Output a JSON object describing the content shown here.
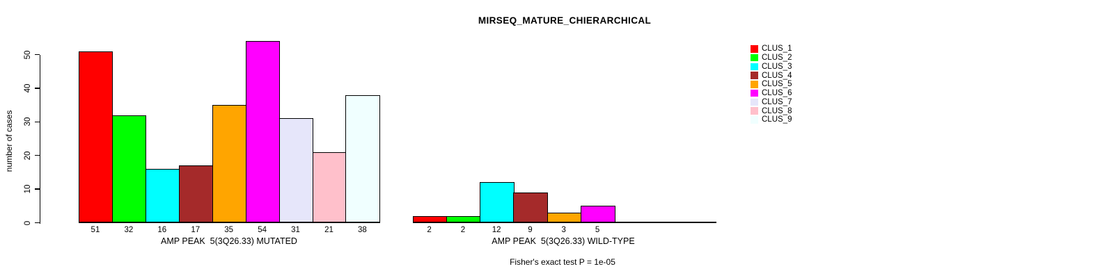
{
  "title": "MIRSEQ_MATURE_CHIERARCHICAL",
  "footer": "Fisher's exact test P = 1e-05",
  "y_axis": {
    "label": "number of cases",
    "ticks": [
      0,
      10,
      20,
      30,
      40,
      50
    ]
  },
  "legend": {
    "position": "right",
    "items": [
      {
        "label": "CLUS_1",
        "color": "#FF0000"
      },
      {
        "label": "CLUS_2",
        "color": "#00FF00"
      },
      {
        "label": "CLUS_3",
        "color": "#00FFFF"
      },
      {
        "label": "CLUS_4",
        "color": "#A52A2A"
      },
      {
        "label": "CLUS_5",
        "color": "#FFA500"
      },
      {
        "label": "CLUS_6",
        "color": "#FF00FF"
      },
      {
        "label": "CLUS_7",
        "color": "#E6E6FA"
      },
      {
        "label": "CLUS_8",
        "color": "#FFC0CB"
      },
      {
        "label": "CLUS_9",
        "color": "#F0FFFF"
      }
    ]
  },
  "chart_data": [
    {
      "type": "bar",
      "title": "MIRSEQ_MATURE_CHIERARCHICAL",
      "xlabel": "AMP PEAK  5(3Q26.33) MUTATED",
      "ylabel": "number of cases",
      "categories": [
        "CLUS_1",
        "CLUS_2",
        "CLUS_3",
        "CLUS_4",
        "CLUS_5",
        "CLUS_6",
        "CLUS_7",
        "CLUS_8",
        "CLUS_9"
      ],
      "values": [
        51,
        32,
        16,
        17,
        35,
        54,
        31,
        21,
        38
      ],
      "colors": [
        "#FF0000",
        "#00FF00",
        "#00FFFF",
        "#A52A2A",
        "#FFA500",
        "#FF00FF",
        "#E6E6FA",
        "#FFC0CB",
        "#F0FFFF"
      ],
      "bar_labels_shown": true,
      "ylim": [
        0,
        54
      ],
      "grid": false
    },
    {
      "type": "bar",
      "title": "",
      "xlabel": "AMP PEAK  5(3Q26.33) WILD-TYPE",
      "ylabel": "",
      "categories": [
        "CLUS_1",
        "CLUS_2",
        "CLUS_3",
        "CLUS_4",
        "CLUS_5",
        "CLUS_6"
      ],
      "values": [
        2,
        2,
        12,
        9,
        3,
        5
      ],
      "colors": [
        "#FF0000",
        "#00FF00",
        "#00FFFF",
        "#A52A2A",
        "#FFA500",
        "#FF00FF"
      ],
      "bar_labels_shown": true,
      "ylim": [
        0,
        54
      ],
      "grid": false
    }
  ]
}
